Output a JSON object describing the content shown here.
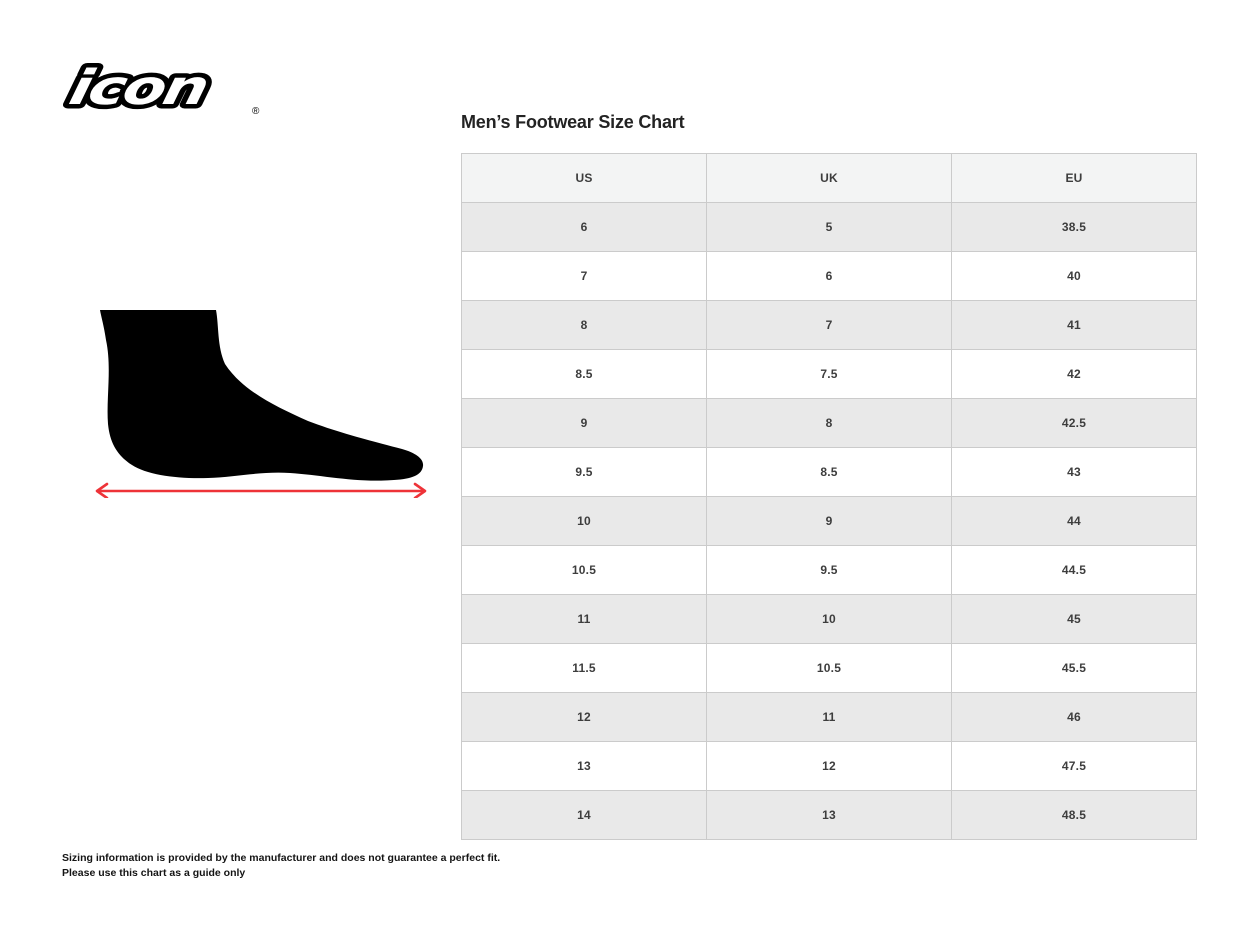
{
  "brand": {
    "logo_text": "icon",
    "registered_mark": "®"
  },
  "chart": {
    "title": "Men’s Footwear Size Chart",
    "columns": [
      "US",
      "UK",
      "EU"
    ],
    "rows": [
      [
        "6",
        "5",
        "38.5"
      ],
      [
        "7",
        "6",
        "40"
      ],
      [
        "8",
        "7",
        "41"
      ],
      [
        "8.5",
        "7.5",
        "42"
      ],
      [
        "9",
        "8",
        "42.5"
      ],
      [
        "9.5",
        "8.5",
        "43"
      ],
      [
        "10",
        "9",
        "44"
      ],
      [
        "10.5",
        "9.5",
        "44.5"
      ],
      [
        "11",
        "10",
        "45"
      ],
      [
        "11.5",
        "10.5",
        "45.5"
      ],
      [
        "12",
        "11",
        "46"
      ],
      [
        "13",
        "12",
        "47.5"
      ],
      [
        "14",
        "13",
        "48.5"
      ]
    ]
  },
  "figure": {
    "description": "Side profile foot silhouette with length measurement arrow",
    "silhouette_color": "#000000",
    "arrow_color": "#ee3338"
  },
  "footer": {
    "line1": "Sizing information is provided by the manufacturer and does not guarantee a perfect fit.",
    "line2": "Please use this chart as a guide only"
  },
  "colors": {
    "header_bg": "#f3f4f4",
    "row_alt_bg": "#e9e9e9",
    "row_bg": "#ffffff",
    "table_border": "#cbcbcb",
    "accent_red": "#ee3338",
    "text_dark": "#232323"
  }
}
